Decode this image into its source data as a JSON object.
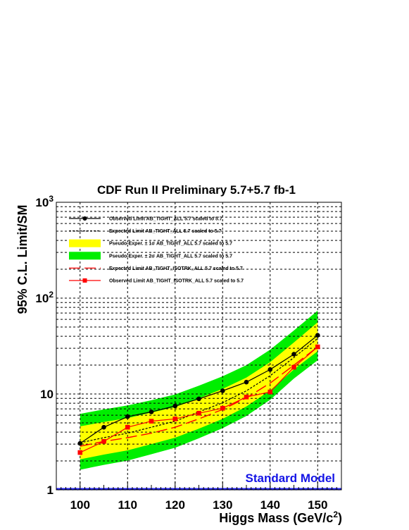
{
  "chart_data": {
    "type": "line",
    "title": "CDF Run II Preliminary 5.7+5.7 fb-1",
    "xlabel": "Higgs Mass (GeV/c",
    "xlabel_sup": "2",
    "xlabel_end": ")",
    "ylabel": "95% C.L. Limit/SM",
    "xlim": [
      95,
      155
    ],
    "ylim": [
      1,
      1000
    ],
    "y_scale": "log",
    "grid": true,
    "legend_position": "top",
    "x_ticks": [
      {
        "value": 100,
        "label": "100"
      },
      {
        "value": 110,
        "label": "110"
      },
      {
        "value": 120,
        "label": "120"
      },
      {
        "value": 130,
        "label": "130"
      },
      {
        "value": 140,
        "label": "140"
      },
      {
        "value": 150,
        "label": "150"
      }
    ],
    "y_ticks": [
      {
        "value": 1,
        "base": "1",
        "exp": ""
      },
      {
        "value": 10,
        "base": "10",
        "exp": ""
      },
      {
        "value": 100,
        "base": "10",
        "exp": "2"
      },
      {
        "value": 1000,
        "base": "10",
        "exp": "3"
      }
    ],
    "x": [
      100,
      105,
      110,
      115,
      120,
      125,
      130,
      135,
      140,
      145,
      150
    ],
    "bands": [
      {
        "name": "Pseudo-Exper. ± 2σ AB_TIGHT_ALL 5.7 scaled to 5.7",
        "color": "#00ee00",
        "low": [
          1.62,
          1.82,
          2.02,
          2.35,
          2.75,
          3.45,
          4.4,
          5.9,
          8.7,
          14.5,
          22.5
        ],
        "high": [
          6.2,
          6.9,
          7.6,
          8.6,
          9.9,
          12.2,
          15.3,
          20.0,
          29.0,
          46.0,
          74.0
        ]
      },
      {
        "name": "Pseudo-Exper. ± 1σ AB_TIGHT_ALL 5.7 scaled to 5.7",
        "color": "#ffff00",
        "low": [
          2.08,
          2.33,
          2.58,
          3.0,
          3.5,
          4.35,
          5.5,
          7.4,
          10.9,
          18.0,
          28.0
        ],
        "high": [
          4.6,
          5.1,
          5.6,
          6.4,
          7.3,
          9.0,
          11.3,
          14.8,
          21.5,
          34.5,
          56.0
        ]
      }
    ],
    "series": [
      {
        "name": "Observed Limit AB_TIGHT_ALL 5.7 scaled to 5.7",
        "color": "#000000",
        "style": "solid-marker-circle",
        "values": [
          3.05,
          4.5,
          5.8,
          6.5,
          7.5,
          8.9,
          10.8,
          13.3,
          18.0,
          26.0,
          41.0
        ]
      },
      {
        "name": "Expected Limit AB_TIGHT_ALL 5.7 scaled to 5.7",
        "color": "#000000",
        "style": "dotted",
        "values": [
          3.1,
          3.5,
          3.9,
          4.5,
          5.2,
          6.5,
          8.1,
          10.8,
          15.5,
          24.0,
          38.0
        ]
      },
      {
        "name": "Expected Limit AB_TIGHT_ISOTRK_ALL 5.7 scaled to 5.7",
        "color": "#ff0000",
        "style": "long-dash",
        "values": [
          2.85,
          3.2,
          3.5,
          3.9,
          4.5,
          5.5,
          6.9,
          9.1,
          13.0,
          20.0,
          31.0
        ]
      },
      {
        "name": "Observed Limit AB_TIGHT_ISOTRK_ALL 5.7 scaled to 5.7",
        "color": "#ff0000",
        "style": "solid-marker-square",
        "values": [
          2.45,
          3.2,
          4.5,
          5.2,
          5.5,
          6.3,
          7.1,
          9.3,
          10.5,
          19.0,
          31.0
        ]
      }
    ],
    "reference_line": {
      "value": 1,
      "color": "#1414e6"
    },
    "annotation": "Standard Model"
  }
}
